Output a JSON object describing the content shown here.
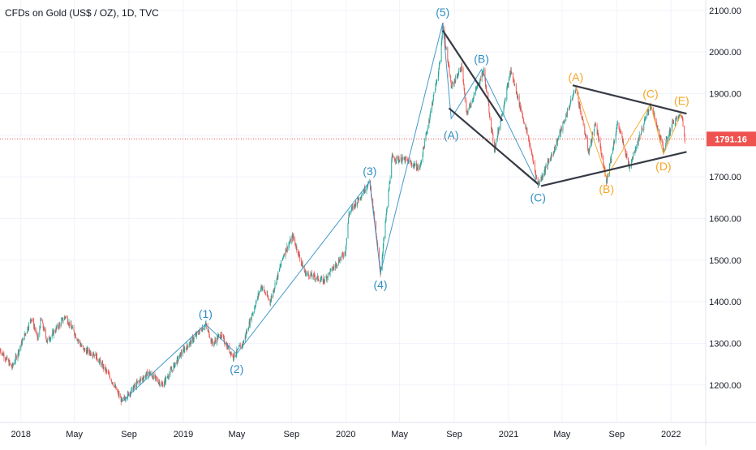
{
  "header": {
    "symbol_title": "CFDs on Gold (US$ / OZ), 1D, TVC"
  },
  "colors": {
    "up": "#26a69a",
    "down": "#ef5350",
    "wave": "#2f8ec2",
    "orange": "#f5a623",
    "trendline": "#363a45",
    "price_line": "#ef5350",
    "axis_text": "#131722"
  },
  "chart_data": {
    "type": "candlestick",
    "title": "CFDs on Gold (US$ / OZ), 1D, TVC",
    "interval": "1D",
    "y_axis": {
      "ylim": [
        1110,
        2125
      ],
      "ticks": [
        1200,
        1300,
        1400,
        1500,
        1600,
        1700,
        1800,
        1900,
        2000,
        2100
      ],
      "tick_labels": [
        "1200.00",
        "1300.00",
        "1400.00",
        "1500.00",
        "1600.00",
        "1700.00",
        "1800.00",
        "1900.00",
        "2000.00",
        "2100.00"
      ]
    },
    "x_axis": {
      "range": [
        "2017-11-15",
        "2022-03-20"
      ],
      "ticks": [
        {
          "date": "2018-01-01",
          "label": "2018"
        },
        {
          "date": "2018-05-01",
          "label": "May"
        },
        {
          "date": "2018-09-01",
          "label": "Sep"
        },
        {
          "date": "2019-01-01",
          "label": "2019"
        },
        {
          "date": "2019-05-01",
          "label": "May"
        },
        {
          "date": "2019-09-01",
          "label": "Sep"
        },
        {
          "date": "2020-01-01",
          "label": "2020"
        },
        {
          "date": "2020-05-01",
          "label": "May"
        },
        {
          "date": "2020-09-01",
          "label": "Sep"
        },
        {
          "date": "2021-01-01",
          "label": "2021"
        },
        {
          "date": "2021-05-01",
          "label": "May"
        },
        {
          "date": "2021-09-01",
          "label": "Sep"
        },
        {
          "date": "2022-01-01",
          "label": "2022"
        }
      ]
    },
    "price_path": [
      [
        "2017-11-15",
        1285
      ],
      [
        "2017-12-12",
        1242
      ],
      [
        "2018-01-25",
        1362
      ],
      [
        "2018-02-08",
        1310
      ],
      [
        "2018-02-15",
        1357
      ],
      [
        "2018-03-01",
        1305
      ],
      [
        "2018-04-11",
        1365
      ],
      [
        "2018-05-21",
        1285
      ],
      [
        "2018-06-15",
        1275
      ],
      [
        "2018-07-20",
        1220
      ],
      [
        "2018-08-16",
        1160
      ],
      [
        "2018-09-20",
        1205
      ],
      [
        "2018-10-15",
        1230
      ],
      [
        "2018-11-15",
        1200
      ],
      [
        "2018-12-31",
        1282
      ],
      [
        "2019-02-20",
        1346
      ],
      [
        "2019-03-08",
        1298
      ],
      [
        "2019-03-25",
        1322
      ],
      [
        "2019-04-23",
        1268
      ],
      [
        "2019-05-15",
        1300
      ],
      [
        "2019-06-25",
        1438
      ],
      [
        "2019-07-15",
        1400
      ],
      [
        "2019-08-15",
        1515
      ],
      [
        "2019-09-04",
        1557
      ],
      [
        "2019-10-01",
        1470
      ],
      [
        "2019-11-12",
        1450
      ],
      [
        "2019-12-31",
        1520
      ],
      [
        "2020-01-08",
        1611
      ],
      [
        "2020-02-24",
        1689
      ],
      [
        "2020-03-19",
        1470
      ],
      [
        "2020-04-14",
        1745
      ],
      [
        "2020-05-15",
        1740
      ],
      [
        "2020-06-15",
        1720
      ],
      [
        "2020-07-31",
        1975
      ],
      [
        "2020-08-06",
        2070
      ],
      [
        "2020-08-25",
        1915
      ],
      [
        "2020-09-18",
        1965
      ],
      [
        "2020-09-28",
        1850
      ],
      [
        "2020-11-06",
        1955
      ],
      [
        "2020-11-30",
        1765
      ],
      [
        "2021-01-06",
        1955
      ],
      [
        "2021-02-15",
        1790
      ],
      [
        "2021-03-08",
        1680
      ],
      [
        "2021-04-15",
        1770
      ],
      [
        "2021-06-01",
        1915
      ],
      [
        "2021-06-30",
        1760
      ],
      [
        "2021-07-15",
        1830
      ],
      [
        "2021-08-09",
        1690
      ],
      [
        "2021-09-03",
        1830
      ],
      [
        "2021-09-29",
        1725
      ],
      [
        "2021-11-16",
        1875
      ],
      [
        "2021-12-15",
        1765
      ],
      [
        "2022-01-05",
        1830
      ],
      [
        "2022-01-25",
        1850
      ],
      [
        "2022-02-01",
        1791
      ]
    ],
    "last_price": 1791.16,
    "last_price_label": "1791.16",
    "annotations": [
      {
        "label": "(1)",
        "date": "2019-02-20",
        "value": 1346,
        "color": "wave",
        "position": "above"
      },
      {
        "label": "(2)",
        "date": "2019-05-01",
        "value": 1268,
        "color": "wave",
        "position": "below"
      },
      {
        "label": "(3)",
        "date": "2020-02-24",
        "value": 1689,
        "color": "wave",
        "position": "above"
      },
      {
        "label": "(4)",
        "date": "2020-03-19",
        "value": 1470,
        "color": "wave",
        "position": "below"
      },
      {
        "label": "(5)",
        "date": "2020-08-06",
        "value": 2070,
        "color": "wave",
        "position": "above"
      },
      {
        "label": "(A)",
        "date": "2020-08-25",
        "value": 1830,
        "color": "wave",
        "position": "below"
      },
      {
        "label": "(B)",
        "date": "2020-11-01",
        "value": 1958,
        "color": "wave",
        "position": "above"
      },
      {
        "label": "(C)",
        "date": "2021-03-08",
        "value": 1680,
        "color": "wave",
        "position": "below"
      },
      {
        "label": "(A)",
        "date": "2021-06-01",
        "value": 1915,
        "color": "orange",
        "position": "above"
      },
      {
        "label": "(B)",
        "date": "2021-08-09",
        "value": 1700,
        "color": "orange",
        "position": "below"
      },
      {
        "label": "(C)",
        "date": "2021-11-16",
        "value": 1875,
        "color": "orange",
        "position": "above"
      },
      {
        "label": "(D)",
        "date": "2021-12-15",
        "value": 1755,
        "color": "orange",
        "position": "below"
      },
      {
        "label": "(E)",
        "date": "2022-01-25",
        "value": 1858,
        "color": "orange",
        "position": "above"
      }
    ],
    "wave_lines": [
      {
        "color": "wave",
        "points": [
          [
            "2018-08-16",
            1160
          ],
          [
            "2019-02-20",
            1346
          ],
          [
            "2019-05-01",
            1275
          ],
          [
            "2020-02-24",
            1689
          ],
          [
            "2020-03-19",
            1470
          ],
          [
            "2020-08-06",
            2070
          ],
          [
            "2020-08-25",
            1840
          ],
          [
            "2020-11-01",
            1958
          ],
          [
            "2021-03-08",
            1680
          ]
        ]
      },
      {
        "color": "orange",
        "points": [
          [
            "2021-06-01",
            1915
          ],
          [
            "2021-08-09",
            1700
          ],
          [
            "2021-11-16",
            1875
          ],
          [
            "2021-12-15",
            1755
          ],
          [
            "2022-01-25",
            1855
          ]
        ]
      }
    ],
    "trendlines": [
      [
        [
          "2020-08-06",
          2052
        ],
        [
          "2020-12-18",
          1835
        ]
      ],
      [
        [
          "2020-08-20",
          1865
        ],
        [
          "2021-03-08",
          1683
        ]
      ],
      [
        [
          "2021-05-25",
          1920
        ],
        [
          "2022-02-05",
          1852
        ]
      ],
      [
        [
          "2021-03-15",
          1678
        ],
        [
          "2022-02-05",
          1760
        ]
      ]
    ]
  }
}
